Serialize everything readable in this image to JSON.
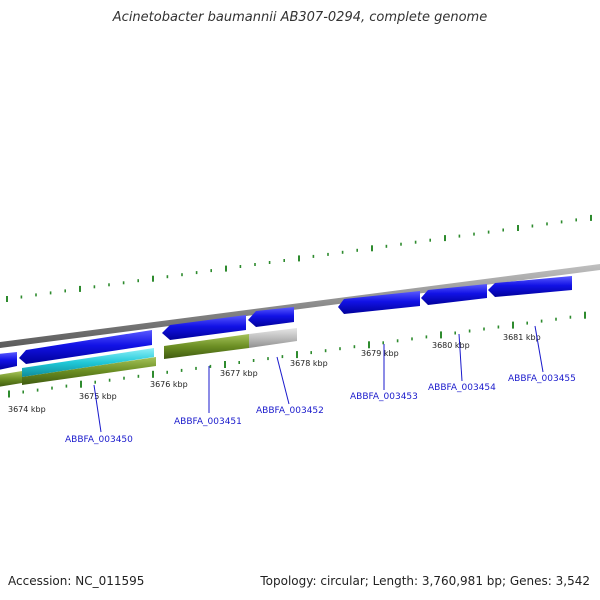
{
  "title": "Acinetobacter baumannii AB307-0294, complete genome",
  "accession": "Accession: NC_011595",
  "info": "Topology: circular; Length: 3,760,981 bp; Genes: 3,542",
  "kbp_labels": [
    "3674 kbp",
    "3675 kbp",
    "3676 kbp",
    "3677 kbp",
    "3678 kbp",
    "3679 kbp",
    "3680 kbp",
    "3681 kbp"
  ],
  "gene_labels": [
    "ABBFA_003450",
    "ABBFA_003451",
    "ABBFA_003452",
    "ABBFA_003453",
    "ABBFA_003454",
    "ABBFA_003455"
  ],
  "colors": {
    "cds": "#1010e0",
    "rna_olive": "#6b8e23",
    "cyan": "#20c8d8",
    "gray_gene": "#bdbdbd",
    "backbone": "#8a8a8a",
    "tick": "#2e8b2e",
    "label": "#1a1acc"
  }
}
